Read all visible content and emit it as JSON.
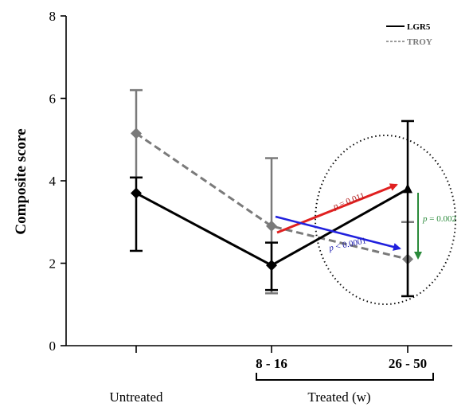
{
  "chart_data": {
    "type": "line",
    "x_positions": [
      "0",
      "8 - 16",
      "26 - 50"
    ],
    "x_tick_labels": [
      "",
      "8 - 16",
      "26 - 50"
    ],
    "ylabel": "Composite score",
    "ylim": [
      0,
      8
    ],
    "yticks": [
      "0",
      "2",
      "4",
      "6",
      "8"
    ],
    "group_labels": {
      "untreated": "Untreated",
      "treated": "Treated (w)"
    },
    "series": [
      {
        "name": "LGR5",
        "style": "solid",
        "color": "#000000",
        "values": [
          3.7,
          1.95,
          3.8
        ],
        "err_low": [
          2.3,
          1.35,
          1.2
        ],
        "err_high": [
          4.08,
          2.5,
          5.45
        ]
      },
      {
        "name": "TROY",
        "style": "dashed",
        "color": "#7a7a7a",
        "values": [
          5.15,
          2.9,
          2.1
        ],
        "err_low": [
          4.08,
          1.27,
          1.2
        ],
        "err_high": [
          6.2,
          4.55,
          3.0
        ]
      }
    ],
    "legend": {
      "placement": "top-right"
    },
    "annotations": [
      {
        "label_p": "p",
        "label_rest": " = 0.011",
        "color": "#cc1f1f"
      },
      {
        "label_p": "p",
        "label_rest": " < 0.0001",
        "color": "#1f1fcc"
      },
      {
        "label_p": "p",
        "label_rest": " = 0.002",
        "color": "#2a8a3a"
      }
    ]
  }
}
